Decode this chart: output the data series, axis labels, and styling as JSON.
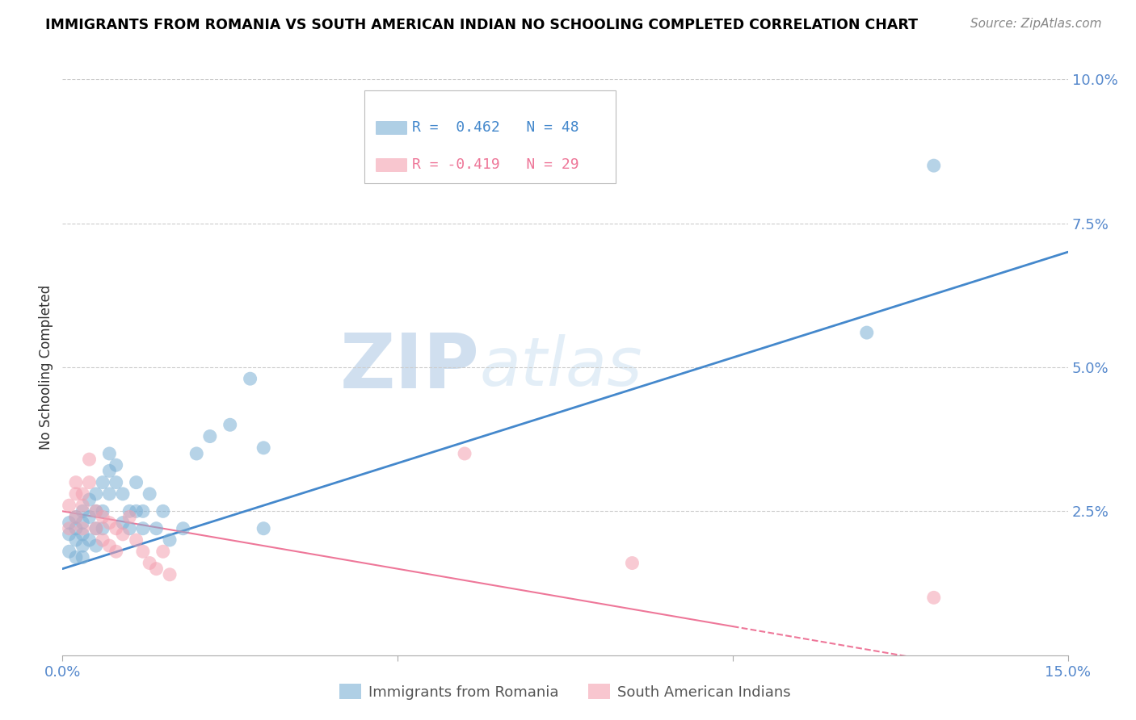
{
  "title": "IMMIGRANTS FROM ROMANIA VS SOUTH AMERICAN INDIAN NO SCHOOLING COMPLETED CORRELATION CHART",
  "source": "Source: ZipAtlas.com",
  "ylabel": "No Schooling Completed",
  "xlim": [
    0.0,
    0.15
  ],
  "ylim": [
    0.0,
    0.1
  ],
  "xticks": [
    0.0,
    0.05,
    0.1,
    0.15
  ],
  "xtick_labels": [
    "0.0%",
    "",
    "",
    "15.0%"
  ],
  "yticks": [
    0.025,
    0.05,
    0.075,
    0.1
  ],
  "ytick_labels": [
    "2.5%",
    "5.0%",
    "7.5%",
    "10.0%"
  ],
  "romania_color": "#7BAFD4",
  "sai_color": "#F4A0B0",
  "romania_label": "Immigrants from Romania",
  "sai_label": "South American Indians",
  "romania_R": 0.462,
  "romania_N": 48,
  "sai_R": -0.419,
  "sai_N": 29,
  "watermark_zip": "ZIP",
  "watermark_atlas": "atlas",
  "romania_line_color": "#4488CC",
  "sai_line_color": "#EE7799",
  "romania_x": [
    0.001,
    0.001,
    0.001,
    0.002,
    0.002,
    0.002,
    0.002,
    0.003,
    0.003,
    0.003,
    0.003,
    0.003,
    0.004,
    0.004,
    0.004,
    0.005,
    0.005,
    0.005,
    0.005,
    0.006,
    0.006,
    0.006,
    0.007,
    0.007,
    0.007,
    0.008,
    0.008,
    0.009,
    0.009,
    0.01,
    0.01,
    0.011,
    0.011,
    0.012,
    0.012,
    0.013,
    0.014,
    0.015,
    0.016,
    0.018,
    0.02,
    0.022,
    0.025,
    0.028,
    0.03,
    0.03,
    0.12,
    0.13
  ],
  "romania_y": [
    0.023,
    0.021,
    0.018,
    0.024,
    0.022,
    0.02,
    0.017,
    0.025,
    0.023,
    0.021,
    0.019,
    0.017,
    0.027,
    0.024,
    0.02,
    0.025,
    0.022,
    0.019,
    0.028,
    0.025,
    0.022,
    0.03,
    0.035,
    0.032,
    0.028,
    0.033,
    0.03,
    0.028,
    0.023,
    0.025,
    0.022,
    0.03,
    0.025,
    0.025,
    0.022,
    0.028,
    0.022,
    0.025,
    0.02,
    0.022,
    0.035,
    0.038,
    0.04,
    0.048,
    0.036,
    0.022,
    0.056,
    0.085
  ],
  "sai_x": [
    0.001,
    0.001,
    0.002,
    0.002,
    0.002,
    0.003,
    0.003,
    0.003,
    0.004,
    0.004,
    0.005,
    0.005,
    0.006,
    0.006,
    0.007,
    0.007,
    0.008,
    0.008,
    0.009,
    0.01,
    0.011,
    0.012,
    0.013,
    0.014,
    0.015,
    0.016,
    0.06,
    0.085,
    0.13
  ],
  "sai_y": [
    0.026,
    0.022,
    0.03,
    0.028,
    0.024,
    0.028,
    0.026,
    0.022,
    0.034,
    0.03,
    0.025,
    0.022,
    0.024,
    0.02,
    0.023,
    0.019,
    0.022,
    0.018,
    0.021,
    0.024,
    0.02,
    0.018,
    0.016,
    0.015,
    0.018,
    0.014,
    0.035,
    0.016,
    0.01
  ]
}
